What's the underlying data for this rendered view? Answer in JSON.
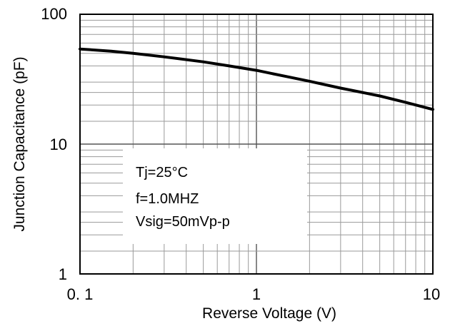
{
  "chart_data": {
    "type": "line",
    "title": "",
    "xlabel": "Reverse Voltage (V)",
    "ylabel": "Junction Capacitance (pF)",
    "x_scale": "log",
    "y_scale": "log",
    "xlim": [
      0.1,
      10
    ],
    "ylim": [
      1,
      100
    ],
    "grid": true,
    "x_ticks": [
      "0. 1",
      "1",
      "10"
    ],
    "y_ticks": [
      "100",
      "10",
      "1"
    ],
    "series": [
      {
        "x": [
          0.1,
          0.15,
          0.2,
          0.3,
          0.5,
          0.7,
          1,
          1.5,
          2,
          3,
          5,
          7,
          10
        ],
        "y": [
          54,
          52,
          50,
          47,
          43,
          40,
          37,
          33,
          30.5,
          27,
          23.5,
          21,
          18.5
        ],
        "color": "#000000"
      }
    ],
    "annotations": [
      "Tj=25°C",
      "f=1.0MHZ",
      "Vsig=50mVp-p"
    ]
  }
}
